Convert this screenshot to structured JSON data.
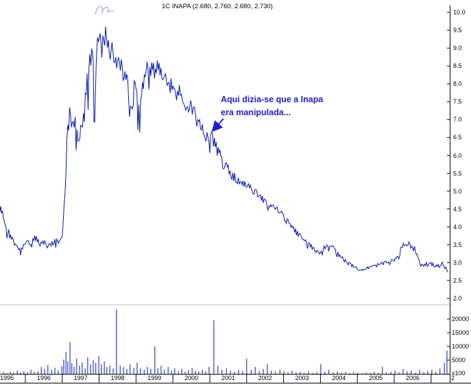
{
  "title": {
    "text": "1C INAPA (2.680, 2.760, 2.680, 2.730)"
  },
  "annotation": {
    "line1": "Aqui dizia-se que a Inapa",
    "line2": "era manipulada...",
    "color": "#2121c8"
  },
  "colors": {
    "series": "#0013b0",
    "axis": "#000000",
    "divider": "#888888",
    "scribble": "#9b9be0"
  },
  "chart_data": {
    "type": "line",
    "title": "1C INAPA (2.680, 2.760, 2.680, 2.730)",
    "quote": {
      "open": 2.68,
      "high": 2.76,
      "low": 2.68,
      "close": 2.73
    },
    "x_range": [
      1995.31,
      2007.5
    ],
    "price_axis": {
      "position": "right",
      "range": [
        2.0,
        10.0
      ],
      "ticks": [
        "10.0",
        "9.5",
        "9.0",
        "8.5",
        "8.0",
        "7.5",
        "7.0",
        "6.5",
        "6.0",
        "5.5",
        "5.0",
        "4.5",
        "4.0",
        "3.5",
        "3.0",
        "2.5",
        "2.0"
      ]
    },
    "volume_axis": {
      "position": "right",
      "range": [
        0,
        25000
      ],
      "ticks": [
        20000,
        15000,
        10000,
        5000
      ],
      "multiplier_label": "x100"
    },
    "year_labels": [
      "1995",
      "1996",
      "1997",
      "1998",
      "1999",
      "2000",
      "2001",
      "2002",
      "2003",
      "2004",
      "2005",
      "2006"
    ],
    "overflow_year_label": "2",
    "grid": "off",
    "price_series": [
      [
        1995.31,
        4.55,
        0.2
      ],
      [
        1995.4,
        4.3,
        0.2
      ],
      [
        1995.5,
        4.0,
        0.22
      ],
      [
        1995.6,
        3.75,
        0.15
      ],
      [
        1995.7,
        3.6,
        0.15
      ],
      [
        1995.8,
        3.5,
        0.15
      ],
      [
        1995.87,
        3.35,
        0.2
      ],
      [
        1995.95,
        3.55,
        0.15
      ],
      [
        1996.0,
        3.6,
        0.12
      ],
      [
        1996.1,
        3.5,
        0.12
      ],
      [
        1996.2,
        3.6,
        0.15
      ],
      [
        1996.3,
        3.7,
        0.12
      ],
      [
        1996.4,
        3.5,
        0.12
      ],
      [
        1996.5,
        3.55,
        0.1
      ],
      [
        1996.6,
        3.45,
        0.12
      ],
      [
        1996.7,
        3.55,
        0.12
      ],
      [
        1996.8,
        3.6,
        0.12
      ],
      [
        1996.9,
        3.65,
        0.15
      ],
      [
        1997.0,
        3.8,
        0.15
      ],
      [
        1997.05,
        4.6,
        0.3
      ],
      [
        1997.1,
        5.8,
        0.4
      ],
      [
        1997.15,
        6.8,
        0.35
      ],
      [
        1997.2,
        7.1,
        0.35
      ],
      [
        1997.25,
        6.9,
        0.3
      ],
      [
        1997.3,
        7.2,
        0.35
      ],
      [
        1997.35,
        6.8,
        0.4
      ],
      [
        1997.4,
        6.5,
        0.3
      ],
      [
        1997.45,
        6.3,
        0.3
      ],
      [
        1997.5,
        6.6,
        0.35
      ],
      [
        1997.55,
        6.9,
        0.4
      ],
      [
        1997.6,
        7.2,
        0.5
      ],
      [
        1997.65,
        7.6,
        0.6
      ],
      [
        1997.7,
        8.1,
        0.6
      ],
      [
        1997.75,
        8.6,
        0.5
      ],
      [
        1997.8,
        9.0,
        0.45
      ],
      [
        1997.84,
        8.0,
        0.9
      ],
      [
        1997.88,
        6.9,
        0.6
      ],
      [
        1997.92,
        8.8,
        0.5
      ],
      [
        1997.96,
        9.4,
        0.4
      ],
      [
        1998.0,
        9.5,
        0.4
      ],
      [
        1998.05,
        9.1,
        0.45
      ],
      [
        1998.1,
        9.6,
        0.35
      ],
      [
        1998.15,
        9.3,
        0.4
      ],
      [
        1998.2,
        9.5,
        0.35
      ],
      [
        1998.25,
        9.0,
        0.45
      ],
      [
        1998.3,
        8.7,
        0.4
      ],
      [
        1998.35,
        9.1,
        0.35
      ],
      [
        1998.4,
        8.9,
        0.4
      ],
      [
        1998.45,
        8.5,
        0.4
      ],
      [
        1998.5,
        8.8,
        0.35
      ],
      [
        1998.55,
        8.4,
        0.4
      ],
      [
        1998.6,
        8.6,
        0.35
      ],
      [
        1998.65,
        8.2,
        0.4
      ],
      [
        1998.7,
        8.4,
        0.35
      ],
      [
        1998.75,
        8.0,
        0.5
      ],
      [
        1998.8,
        7.4,
        0.6
      ],
      [
        1998.85,
        7.0,
        0.5
      ],
      [
        1998.9,
        7.4,
        0.4
      ],
      [
        1998.95,
        7.8,
        0.35
      ],
      [
        1999.0,
        7.8,
        0.5
      ],
      [
        1999.05,
        7.2,
        0.6
      ],
      [
        1999.1,
        7.0,
        0.5
      ],
      [
        1999.15,
        7.5,
        0.45
      ],
      [
        1999.2,
        8.0,
        0.4
      ],
      [
        1999.3,
        8.4,
        0.35
      ],
      [
        1999.4,
        8.6,
        0.3
      ],
      [
        1999.5,
        8.4,
        0.35
      ],
      [
        1999.6,
        8.5,
        0.3
      ],
      [
        1999.7,
        8.2,
        0.35
      ],
      [
        1999.8,
        8.3,
        0.3
      ],
      [
        1999.9,
        8.0,
        0.3
      ],
      [
        2000.0,
        7.9,
        0.3
      ],
      [
        2000.1,
        7.7,
        0.3
      ],
      [
        2000.2,
        7.8,
        0.25
      ],
      [
        2000.3,
        7.5,
        0.3
      ],
      [
        2000.4,
        7.3,
        0.25
      ],
      [
        2000.5,
        7.4,
        0.25
      ],
      [
        2000.6,
        7.1,
        0.3
      ],
      [
        2000.7,
        6.9,
        0.25
      ],
      [
        2000.8,
        6.7,
        0.3
      ],
      [
        2000.9,
        6.6,
        0.25
      ],
      [
        2001.0,
        6.45,
        0.25
      ],
      [
        2001.1,
        6.5,
        0.2
      ],
      [
        2001.2,
        6.2,
        0.25
      ],
      [
        2001.3,
        5.95,
        0.25
      ],
      [
        2001.4,
        5.7,
        0.2
      ],
      [
        2001.5,
        5.6,
        0.2
      ],
      [
        2001.6,
        5.45,
        0.15
      ],
      [
        2001.7,
        5.35,
        0.15
      ],
      [
        2001.8,
        5.28,
        0.12
      ],
      [
        2001.9,
        5.2,
        0.12
      ],
      [
        2002.0,
        5.15,
        0.12
      ],
      [
        2002.1,
        5.08,
        0.12
      ],
      [
        2002.2,
        5.0,
        0.12
      ],
      [
        2002.3,
        4.9,
        0.12
      ],
      [
        2002.4,
        4.8,
        0.12
      ],
      [
        2002.5,
        4.72,
        0.1
      ],
      [
        2002.6,
        4.65,
        0.12
      ],
      [
        2002.7,
        4.58,
        0.1
      ],
      [
        2002.8,
        4.5,
        0.12
      ],
      [
        2002.9,
        4.42,
        0.1
      ],
      [
        2003.0,
        4.3,
        0.12
      ],
      [
        2003.1,
        4.15,
        0.12
      ],
      [
        2003.2,
        4.0,
        0.1
      ],
      [
        2003.3,
        3.9,
        0.1
      ],
      [
        2003.4,
        3.78,
        0.1
      ],
      [
        2003.5,
        3.7,
        0.1
      ],
      [
        2003.6,
        3.58,
        0.08
      ],
      [
        2003.7,
        3.5,
        0.08
      ],
      [
        2003.8,
        3.4,
        0.08
      ],
      [
        2003.9,
        3.32,
        0.08
      ],
      [
        2004.0,
        3.3,
        0.1
      ],
      [
        2004.1,
        3.4,
        0.1
      ],
      [
        2004.2,
        3.52,
        0.08
      ],
      [
        2004.3,
        3.45,
        0.08
      ],
      [
        2004.4,
        3.35,
        0.08
      ],
      [
        2004.5,
        3.22,
        0.08
      ],
      [
        2004.6,
        3.12,
        0.06
      ],
      [
        2004.7,
        3.02,
        0.06
      ],
      [
        2004.8,
        2.95,
        0.06
      ],
      [
        2004.9,
        2.88,
        0.06
      ],
      [
        2005.0,
        2.84,
        0.05
      ],
      [
        2005.1,
        2.8,
        0.05
      ],
      [
        2005.2,
        2.82,
        0.05
      ],
      [
        2005.3,
        2.86,
        0.05
      ],
      [
        2005.4,
        2.88,
        0.05
      ],
      [
        2005.5,
        2.92,
        0.06
      ],
      [
        2005.6,
        2.95,
        0.05
      ],
      [
        2005.7,
        2.98,
        0.06
      ],
      [
        2005.8,
        3.0,
        0.05
      ],
      [
        2005.9,
        3.02,
        0.06
      ],
      [
        2006.0,
        3.08,
        0.08
      ],
      [
        2006.1,
        3.12,
        0.1
      ],
      [
        2006.2,
        3.4,
        0.12
      ],
      [
        2006.3,
        3.55,
        0.1
      ],
      [
        2006.4,
        3.5,
        0.1
      ],
      [
        2006.5,
        3.45,
        0.1
      ],
      [
        2006.6,
        3.3,
        0.12
      ],
      [
        2006.7,
        2.98,
        0.1
      ],
      [
        2006.8,
        2.95,
        0.08
      ],
      [
        2006.9,
        3.0,
        0.08
      ],
      [
        2007.0,
        2.95,
        0.08
      ],
      [
        2007.1,
        2.92,
        0.06
      ],
      [
        2007.2,
        2.9,
        0.06
      ],
      [
        2007.3,
        2.95,
        0.08
      ],
      [
        2007.4,
        2.85,
        0.05
      ],
      [
        2007.45,
        2.73,
        0.03
      ]
    ],
    "volume_series": [
      [
        1995.41,
        600
      ],
      [
        1995.5,
        300
      ],
      [
        1995.59,
        800
      ],
      [
        1995.68,
        400
      ],
      [
        1995.78,
        1200
      ],
      [
        1995.87,
        500
      ],
      [
        1995.96,
        900
      ],
      [
        1996.06,
        600
      ],
      [
        1996.15,
        1500
      ],
      [
        1996.24,
        700
      ],
      [
        1996.34,
        1000
      ],
      [
        1996.43,
        2500
      ],
      [
        1996.52,
        1800
      ],
      [
        1996.61,
        3200
      ],
      [
        1996.71,
        1500
      ],
      [
        1996.8,
        2200
      ],
      [
        1996.89,
        1200
      ],
      [
        1996.99,
        2800
      ],
      [
        1997.04,
        5200
      ],
      [
        1997.1,
        8000
      ],
      [
        1997.15,
        4500
      ],
      [
        1997.21,
        11500
      ],
      [
        1997.26,
        3800
      ],
      [
        1997.32,
        2500
      ],
      [
        1997.39,
        5500
      ],
      [
        1997.47,
        3000
      ],
      [
        1997.54,
        4200
      ],
      [
        1997.62,
        2000
      ],
      [
        1997.69,
        6000
      ],
      [
        1997.77,
        3500
      ],
      [
        1997.84,
        5000
      ],
      [
        1997.91,
        4000
      ],
      [
        1997.99,
        6500
      ],
      [
        1998.06,
        3500
      ],
      [
        1998.14,
        4500
      ],
      [
        1998.21,
        2500
      ],
      [
        1998.29,
        3000
      ],
      [
        1998.38,
        2000
      ],
      [
        1998.47,
        23500
      ],
      [
        1998.57,
        3000
      ],
      [
        1998.66,
        2500
      ],
      [
        1998.75,
        1800
      ],
      [
        1998.84,
        3500
      ],
      [
        1998.94,
        2200
      ],
      [
        1999.03,
        4000
      ],
      [
        1999.12,
        2000
      ],
      [
        1999.22,
        1500
      ],
      [
        1999.31,
        2500
      ],
      [
        1999.4,
        1800
      ],
      [
        1999.51,
        10000
      ],
      [
        1999.59,
        2000
      ],
      [
        1999.68,
        3000
      ],
      [
        1999.77,
        1500
      ],
      [
        1999.87,
        2500
      ],
      [
        1999.96,
        1200
      ],
      [
        2000.05,
        2000
      ],
      [
        2000.15,
        1000
      ],
      [
        2000.24,
        1800
      ],
      [
        2000.33,
        800
      ],
      [
        2000.42,
        1500
      ],
      [
        2000.52,
        2200
      ],
      [
        2000.61,
        1200
      ],
      [
        2000.7,
        900
      ],
      [
        2000.8,
        1500
      ],
      [
        2000.89,
        1000
      ],
      [
        2000.98,
        2500
      ],
      [
        2001.11,
        19500
      ],
      [
        2001.22,
        3000
      ],
      [
        2001.33,
        1500
      ],
      [
        2001.45,
        2000
      ],
      [
        2001.56,
        1200
      ],
      [
        2001.67,
        800
      ],
      [
        2001.78,
        1500
      ],
      [
        2001.89,
        1000
      ],
      [
        2002.0,
        5500
      ],
      [
        2002.12,
        1500
      ],
      [
        2002.23,
        2500
      ],
      [
        2002.34,
        1000
      ],
      [
        2002.45,
        1800
      ],
      [
        2002.56,
        3500
      ],
      [
        2002.67,
        1200
      ],
      [
        2002.78,
        800
      ],
      [
        2002.9,
        1500
      ],
      [
        2003.01,
        1000
      ],
      [
        2003.12,
        600
      ],
      [
        2003.23,
        1200
      ],
      [
        2003.34,
        500
      ],
      [
        2003.45,
        800
      ],
      [
        2003.56,
        400
      ],
      [
        2003.68,
        900
      ],
      [
        2003.79,
        300
      ],
      [
        2003.9,
        700
      ],
      [
        2004.01,
        3500
      ],
      [
        2004.12,
        800
      ],
      [
        2004.23,
        1500
      ],
      [
        2004.35,
        500
      ],
      [
        2004.46,
        900
      ],
      [
        2004.57,
        400
      ],
      [
        2004.68,
        700
      ],
      [
        2004.79,
        300
      ],
      [
        2004.9,
        600
      ],
      [
        2005.01,
        400
      ],
      [
        2005.13,
        250
      ],
      [
        2005.24,
        500
      ],
      [
        2005.35,
        300
      ],
      [
        2005.46,
        700
      ],
      [
        2005.57,
        350
      ],
      [
        2005.68,
        2500
      ],
      [
        2005.79,
        500
      ],
      [
        2005.91,
        800
      ],
      [
        2006.02,
        1200
      ],
      [
        2006.13,
        600
      ],
      [
        2006.24,
        1800
      ],
      [
        2006.35,
        900
      ],
      [
        2006.46,
        1200
      ],
      [
        2006.58,
        500
      ],
      [
        2006.69,
        1500
      ],
      [
        2006.8,
        700
      ],
      [
        2006.91,
        1000
      ],
      [
        2007.02,
        1500
      ],
      [
        2007.13,
        800
      ],
      [
        2007.24,
        2000
      ],
      [
        2007.36,
        4000
      ],
      [
        2007.43,
        8500
      ]
    ]
  }
}
